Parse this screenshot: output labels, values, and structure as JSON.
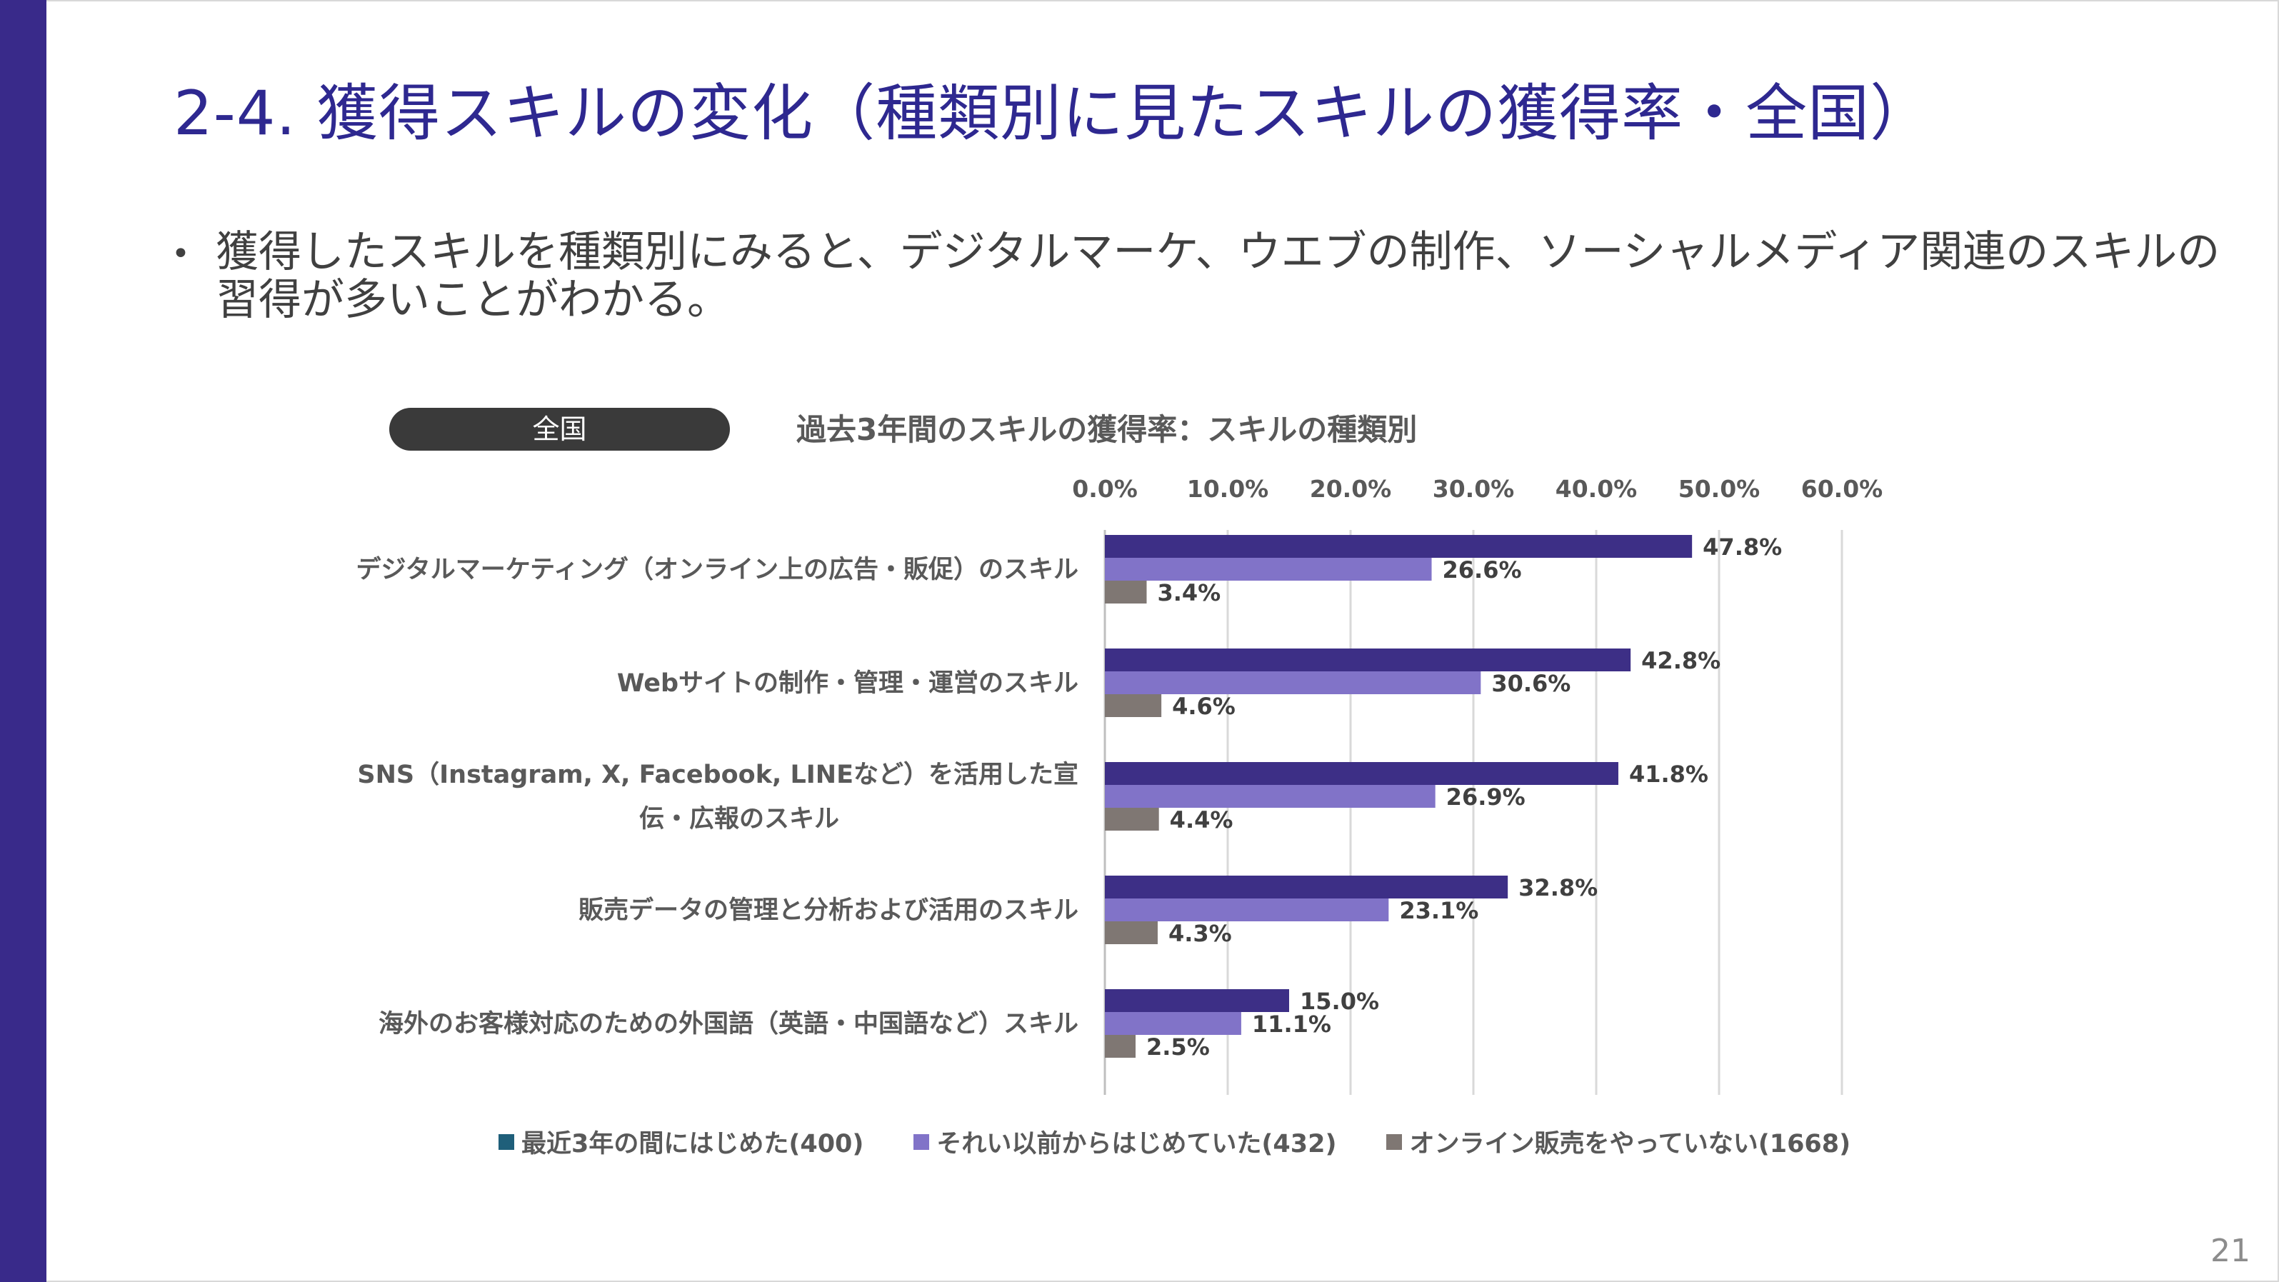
{
  "slide": {
    "title": "2-4. 獲得スキルの変化（種類別に見たスキルの獲得率・全国）",
    "bullet": "獲得したスキルを種類別にみると、デジタルマーケ、ウエブの制作、ソーシャルメディア関連のスキルの習得が多いことがわかる。",
    "bullet_marker": "•",
    "region_label": "全国",
    "page_number": "21"
  },
  "colors": {
    "accent_bar": "#392a8a",
    "title_text": "#2e2890"
  },
  "chart_data": {
    "type": "bar",
    "orientation": "horizontal",
    "title": "過去3年間のスキルの獲得率：スキルの種類別",
    "categories": [
      [
        "デジタルマーケティング（オンライン上の広告・販促）のスキル"
      ],
      [
        "Webサイトの制作・管理・運営のスキル"
      ],
      [
        "SNS（Instagram, X, Facebook, LINEなど）を活用した宣",
        "伝・広報のスキル"
      ],
      [
        "販売データの管理と分析および活用のスキル"
      ],
      [
        "海外のお客様対応のための外国語（英語・中国語など）スキル"
      ]
    ],
    "series": [
      {
        "name": "最近3年の間にはじめた(400)",
        "color": "#3d2f86",
        "legend_color": "#1f5f7a",
        "values": [
          47.8,
          42.8,
          41.8,
          32.8,
          15.0
        ]
      },
      {
        "name": "それい以前からはじめていた(432)",
        "color": "#8173c8",
        "legend_color": "#8173c8",
        "values": [
          26.6,
          30.6,
          26.9,
          23.1,
          11.1
        ]
      },
      {
        "name": "オンライン販売をやっていない(1668)",
        "color": "#7f7773",
        "legend_color": "#7f7773",
        "values": [
          3.4,
          4.6,
          4.4,
          4.3,
          2.5
        ]
      }
    ],
    "value_labels": [
      [
        "47.8%",
        "42.8%",
        "41.8%",
        "32.8%",
        "15.0%"
      ],
      [
        "26.6%",
        "30.6%",
        "26.9%",
        "23.1%",
        "11.1%"
      ],
      [
        "3.4%",
        "4.6%",
        "4.4%",
        "4.3%",
        "2.5%"
      ]
    ],
    "x_ticks": [
      "0.0%",
      "10.0%",
      "20.0%",
      "30.0%",
      "40.0%",
      "50.0%",
      "60.0%"
    ],
    "xlim": [
      0,
      60
    ],
    "x_axis_position": "top",
    "grid": true,
    "legend_position": "bottom"
  }
}
